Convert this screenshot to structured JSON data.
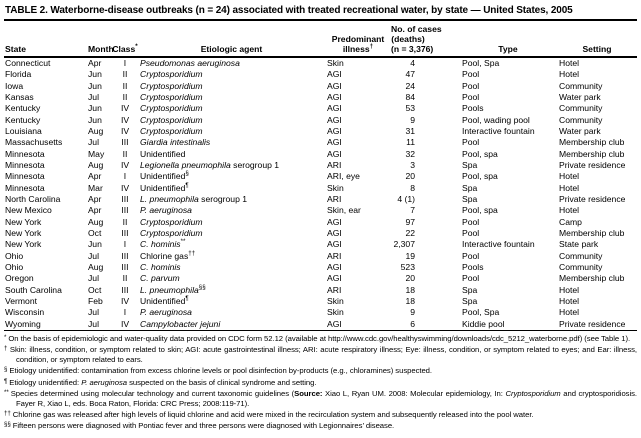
{
  "title": "TABLE 2. Waterborne-disease outbreaks (n = 24) associated with treated recreational water, by state — United States, 2005",
  "header": {
    "columns": [
      {
        "id": "state",
        "lines": [
          "State"
        ]
      },
      {
        "id": "month",
        "lines": [
          "Month"
        ]
      },
      {
        "id": "class",
        "lines": [
          "Class"
        ],
        "sup": "*"
      },
      {
        "id": "agent",
        "lines": [
          "Etiologic agent"
        ]
      },
      {
        "id": "illness",
        "lines": [
          "Predominant",
          "illness"
        ],
        "sup": "†"
      },
      {
        "id": "cases",
        "lines": [
          "No. of cases",
          "(deaths)",
          "(n = 3,376)"
        ]
      },
      {
        "id": "type",
        "lines": [
          "Type"
        ]
      },
      {
        "id": "setting",
        "lines": [
          "Setting"
        ]
      }
    ]
  },
  "rows": [
    {
      "state": "Connecticut",
      "month": "Apr",
      "cls": "I",
      "agent": {
        "italic": "Pseudomonas aeruginosa"
      },
      "illness": "Skin",
      "cases": "4",
      "type": "Pool, Spa",
      "setting": "Hotel"
    },
    {
      "state": "Florida",
      "month": "Jun",
      "cls": "II",
      "agent": {
        "italic": "Cryptosporidium"
      },
      "illness": "AGI",
      "cases": "47",
      "type": "Pool",
      "setting": "Hotel"
    },
    {
      "state": "Iowa",
      "month": "Jun",
      "cls": "II",
      "agent": {
        "italic": "Cryptosporidium"
      },
      "illness": "AGI",
      "cases": "24",
      "type": "Pool",
      "setting": "Community"
    },
    {
      "state": "Kansas",
      "month": "Jul",
      "cls": "II",
      "agent": {
        "italic": "Cryptosporidium"
      },
      "illness": "AGI",
      "cases": "84",
      "type": "Pool",
      "setting": "Water park"
    },
    {
      "state": "Kentucky",
      "month": "Jun",
      "cls": "IV",
      "agent": {
        "italic": "Cryptosporidium"
      },
      "illness": "AGI",
      "cases": "53",
      "type": "Pools",
      "setting": "Community"
    },
    {
      "state": "Kentucky",
      "month": "Jun",
      "cls": "IV",
      "agent": {
        "italic": "Cryptosporidium"
      },
      "illness": "AGI",
      "cases": "9",
      "type": "Pool, wading pool",
      "setting": "Community"
    },
    {
      "state": "Louisiana",
      "month": "Aug",
      "cls": "IV",
      "agent": {
        "italic": "Cryptosporidium"
      },
      "illness": "AGI",
      "cases": "31",
      "type": "Interactive fountain",
      "setting": "Water park"
    },
    {
      "state": "Massachusetts",
      "month": "Jul",
      "cls": "III",
      "agent": {
        "italic": "Giardia intestinalis"
      },
      "illness": "AGI",
      "cases": "11",
      "type": "Pool",
      "setting": "Membership club"
    },
    {
      "state": "Minnesota",
      "month": "May",
      "cls": "II",
      "agent": {
        "roman": "Unidentified"
      },
      "illness": "AGI",
      "cases": "32",
      "type": "Pool, spa",
      "setting": "Membership club"
    },
    {
      "state": "Minnesota",
      "month": "Aug",
      "cls": "IV",
      "agent": {
        "italic": "Legionella pneumophila",
        "roman": " serogroup 1"
      },
      "illness": "ARI",
      "cases": "3",
      "type": "Spa",
      "setting": "Private residence"
    },
    {
      "state": "Minnesota",
      "month": "Apr",
      "cls": "I",
      "agent": {
        "roman": "Unidentified",
        "sup": "§"
      },
      "illness": "ARI, eye",
      "cases": "20",
      "type": "Pool, spa",
      "setting": "Hotel"
    },
    {
      "state": "Minnesota",
      "month": "Mar",
      "cls": "IV",
      "agent": {
        "roman": "Unidentified",
        "sup": "¶"
      },
      "illness": "Skin",
      "cases": "8",
      "type": "Spa",
      "setting": "Hotel"
    },
    {
      "state": "North Carolina",
      "month": "Apr",
      "cls": "III",
      "agent": {
        "italic": "L. pneumophila",
        "roman": " serogroup 1"
      },
      "illness": "ARI",
      "cases": "4 (1)",
      "type": "Spa",
      "setting": "Private residence"
    },
    {
      "state": "New Mexico",
      "month": "Apr",
      "cls": "III",
      "agent": {
        "italic": "P. aeruginosa"
      },
      "illness": "Skin, ear",
      "cases": "7",
      "type": "Pool, spa",
      "setting": "Hotel"
    },
    {
      "state": "New York",
      "month": "Aug",
      "cls": "II",
      "agent": {
        "italic": "Cryptosporidium"
      },
      "illness": "AGI",
      "cases": "97",
      "type": "Pool",
      "setting": "Camp"
    },
    {
      "state": "New York",
      "month": "Oct",
      "cls": "III",
      "agent": {
        "italic": "Cryptosporidium"
      },
      "illness": "AGI",
      "cases": "22",
      "type": "Pool",
      "setting": "Membership club"
    },
    {
      "state": "New York",
      "month": "Jun",
      "cls": "I",
      "agent": {
        "italic": "C. hominis",
        "sup": "**"
      },
      "illness": "AGI",
      "cases": "2,307",
      "type": "Interactive fountain",
      "setting": "State park"
    },
    {
      "state": "Ohio",
      "month": "Jul",
      "cls": "III",
      "agent": {
        "roman": "Chlorine gas",
        "sup": "††"
      },
      "illness": "ARI",
      "cases": "19",
      "type": "Pool",
      "setting": "Community"
    },
    {
      "state": "Ohio",
      "month": "Aug",
      "cls": "III",
      "agent": {
        "italic": "C. hominis"
      },
      "illness": "AGI",
      "cases": "523",
      "type": "Pools",
      "setting": "Community"
    },
    {
      "state": "Oregon",
      "month": "Jul",
      "cls": "II",
      "agent": {
        "italic": "C. parvum"
      },
      "illness": "AGI",
      "cases": "20",
      "type": "Pool",
      "setting": "Membership club"
    },
    {
      "state": "South Carolina",
      "month": "Oct",
      "cls": "III",
      "agent": {
        "italic": "L. pneumophila",
        "sup": "§§"
      },
      "illness": "ARI",
      "cases": "18",
      "type": "Spa",
      "setting": "Hotel"
    },
    {
      "state": "Vermont",
      "month": "Feb",
      "cls": "IV",
      "agent": {
        "roman": "Unidentified",
        "sup": "¶"
      },
      "illness": "Skin",
      "cases": "18",
      "type": "Spa",
      "setting": "Hotel"
    },
    {
      "state": "Wisconsin",
      "month": "Jul",
      "cls": "I",
      "agent": {
        "italic": "P. aeruginosa"
      },
      "illness": "Skin",
      "cases": "9",
      "type": "Pool, Spa",
      "setting": "Hotel"
    },
    {
      "state": "Wyoming",
      "month": "Jul",
      "cls": "IV",
      "agent": {
        "italic": "Campylobacter jejuni"
      },
      "illness": "AGI",
      "cases": "6",
      "type": "Kiddie pool",
      "setting": "Private residence"
    }
  ],
  "footnotes": [
    {
      "marker": "*",
      "parts": [
        {
          "text": "On the basis of epidemiologic and water-quality data provided on CDC form 52.12 (available at http://www.cdc.gov/healthyswimming/downloads/cdc_5212_waterborne.pdf) (see Table 1)."
        }
      ]
    },
    {
      "marker": "†",
      "parts": [
        {
          "text": "Skin: illness, condition, or symptom related to skin; AGI: acute gastrointestinal illness; ARI: acute respiratory illness; Eye: illness, condition, or symptom related to eyes; and Ear: illness, condition, or symptom related to ears."
        }
      ]
    },
    {
      "marker": "§",
      "parts": [
        {
          "text": "Etiology unidentified: contamination from excess chlorine levels or pool disinfection by-products (e.g., chloramines) suspected."
        }
      ]
    },
    {
      "marker": "¶",
      "parts": [
        {
          "text": "Etiology unidentified: "
        },
        {
          "text": "P. aeruginosa",
          "italic": true
        },
        {
          "text": " suspected on the basis of clinical syndrome and setting."
        }
      ]
    },
    {
      "marker": "**",
      "parts": [
        {
          "text": "Species determined using molecular technology and current taxonomic guidelines ("
        },
        {
          "text": "Source:",
          "bold": true
        },
        {
          "text": " Xiao L, Ryan UM. 2008: Molecular epidemiology, In: "
        },
        {
          "text": "Cryptosporidium",
          "italic": true
        },
        {
          "text": " and cryptosporidiosis. Fayer R, Xiao L, eds. Boca Raton, Florida: CRC Press; 2008:119-71)."
        }
      ]
    },
    {
      "marker": "††",
      "parts": [
        {
          "text": "Chlorine gas was released after high levels of liquid chlorine and acid were mixed in the recirculation system and subsequently released into the pool water."
        }
      ]
    },
    {
      "marker": "§§",
      "parts": [
        {
          "text": "Fifteen persons were diagnosed with Pontiac fever and three persons were diagnosed with Legionnaires’ disease."
        }
      ]
    }
  ]
}
